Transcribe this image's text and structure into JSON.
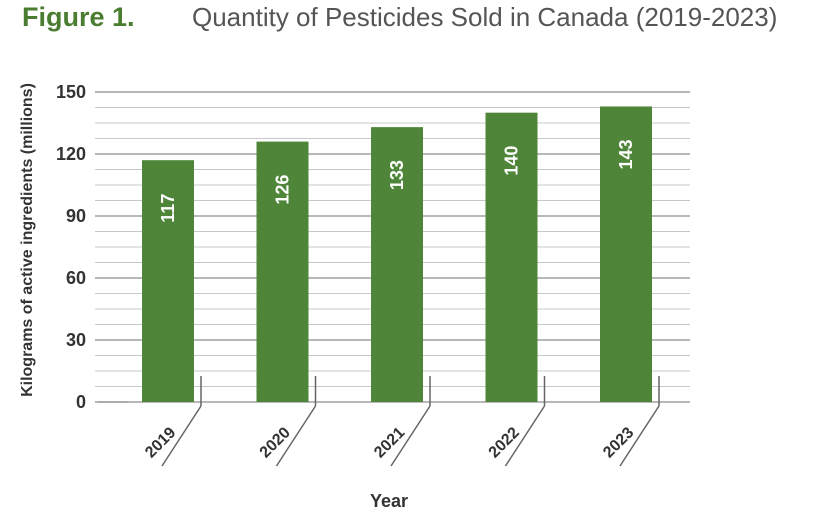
{
  "figure": {
    "label": "Figure 1.",
    "title": "Quantity of Pesticides Sold in Canada (2019-2023)"
  },
  "colors": {
    "bar": "#4e8538",
    "label_green": "#4a7d2f",
    "title_gray": "#555555",
    "grid": "#c8c8c8",
    "grid_major": "#a0a0a0",
    "text": "#333333"
  },
  "chart_data": {
    "type": "bar",
    "categories": [
      "2019",
      "2020",
      "2021",
      "2022",
      "2023"
    ],
    "values": [
      117,
      126,
      133,
      140,
      143
    ],
    "data_labels": [
      "117",
      "126",
      "133",
      "140",
      "143"
    ],
    "xlabel": "Year",
    "ylabel": "Kilograms of active ingredients (millions)",
    "ylim": [
      0,
      150
    ],
    "yticks": [
      0,
      30,
      60,
      90,
      120,
      150
    ],
    "grid": true,
    "legend": "none"
  }
}
